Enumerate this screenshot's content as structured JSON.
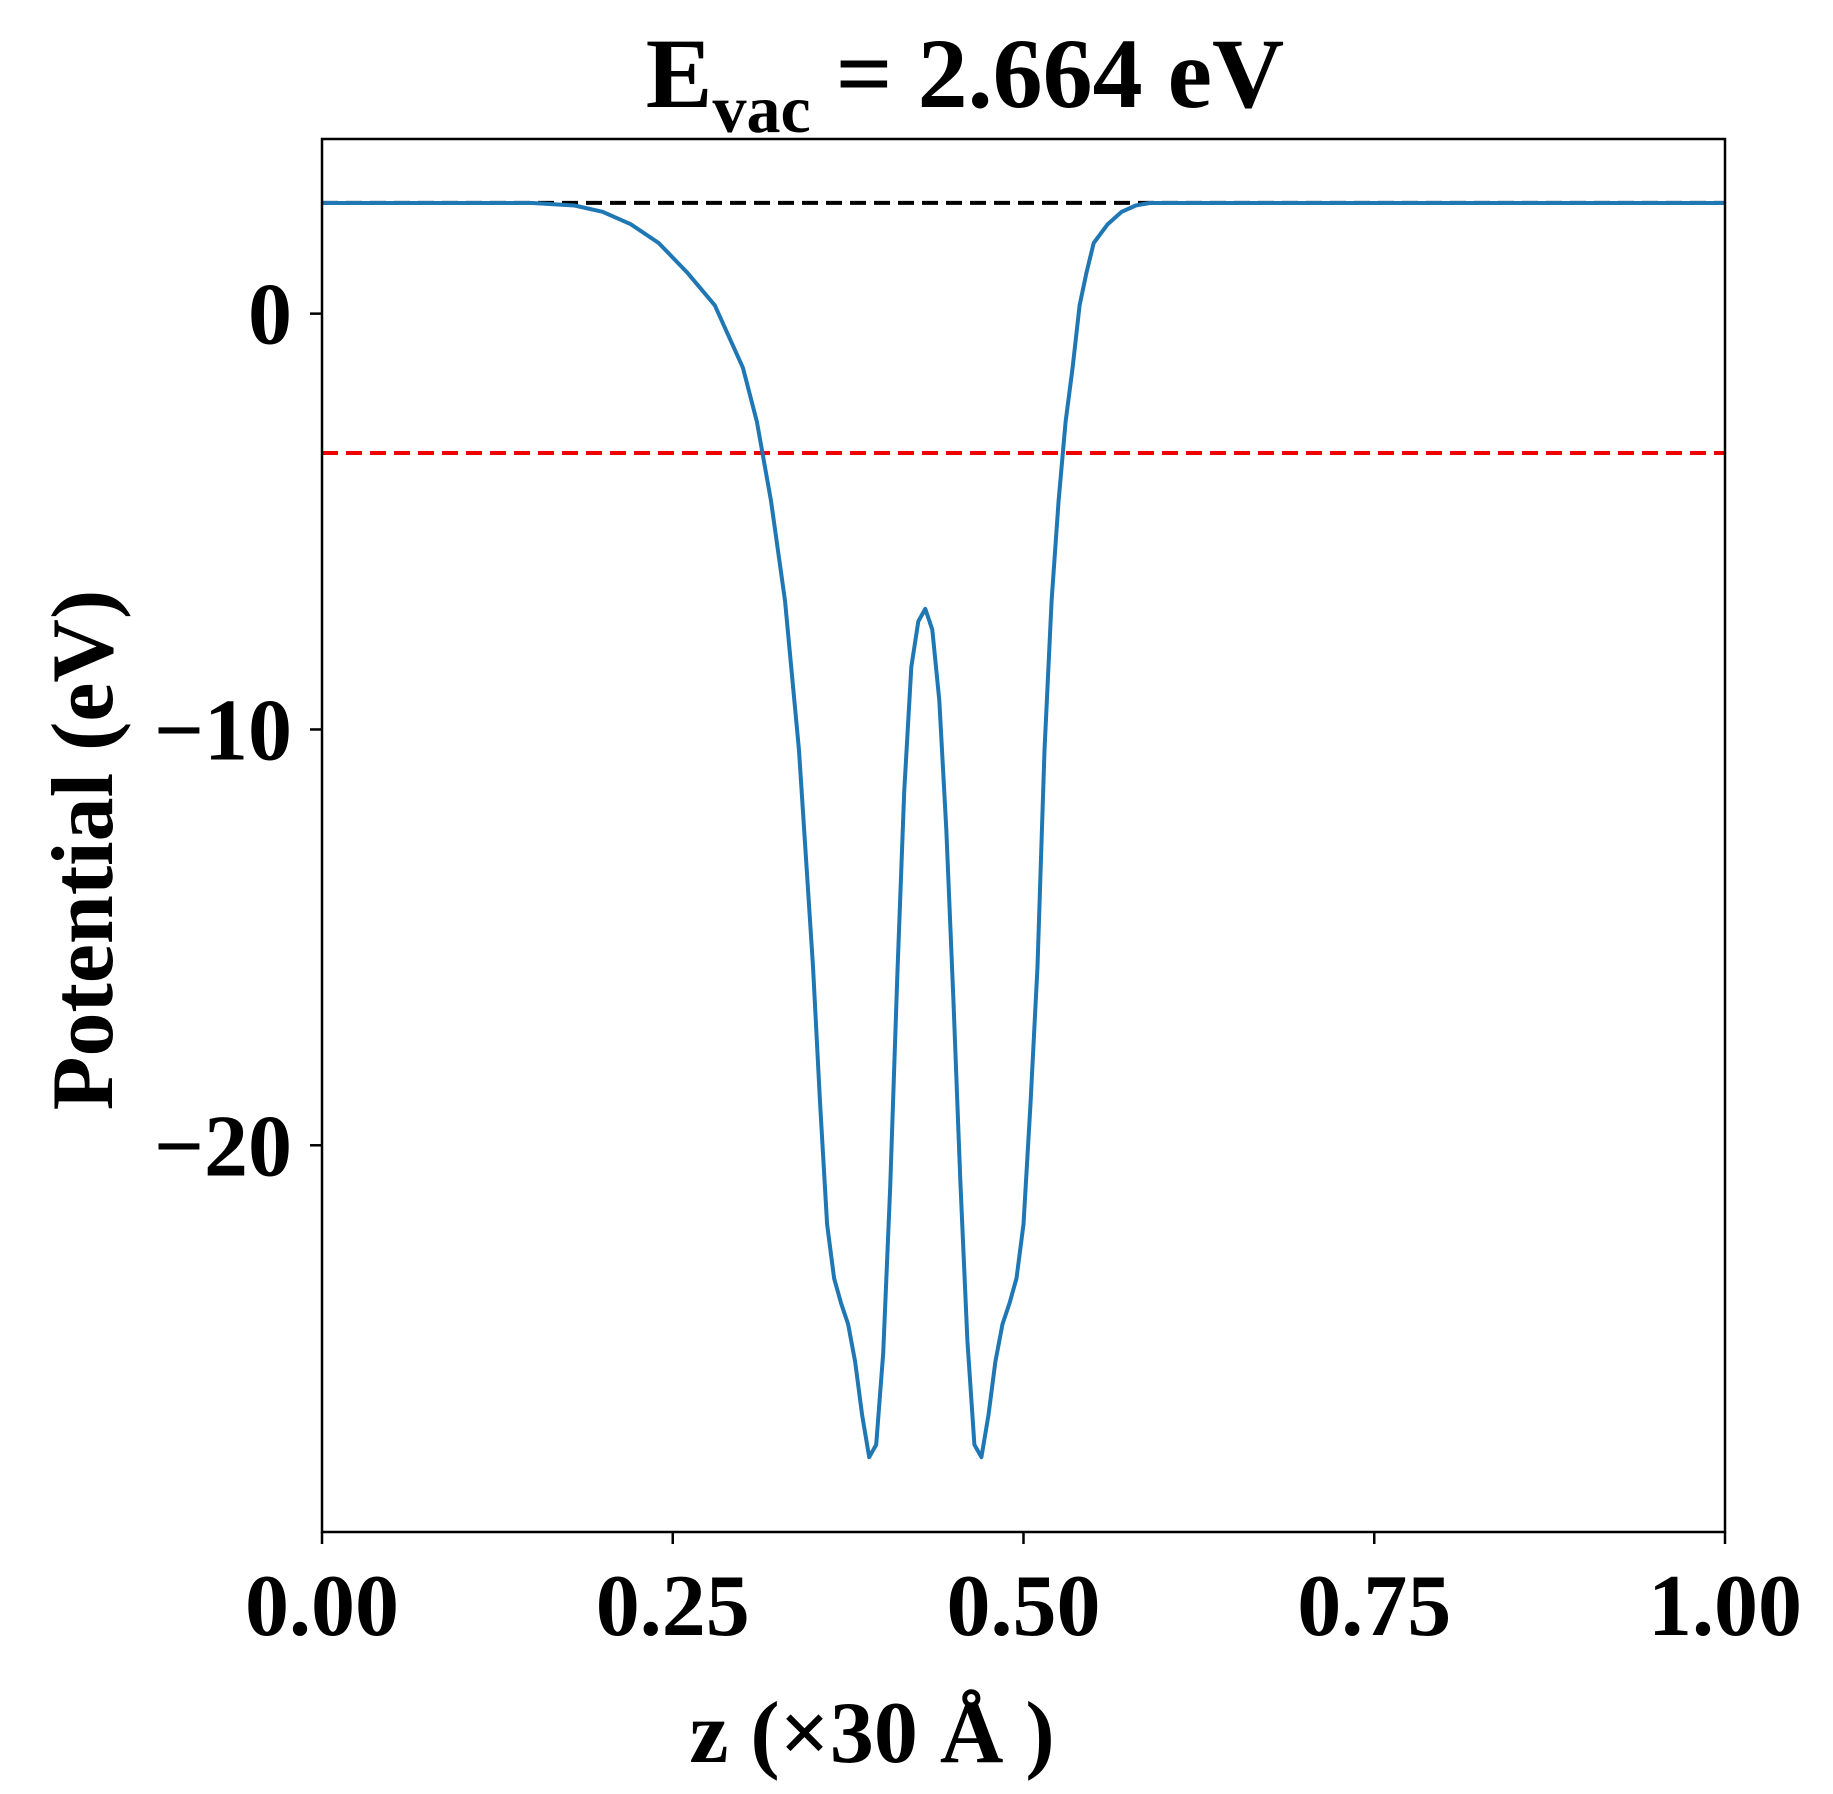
{
  "chart_data": {
    "type": "line",
    "title": {
      "main": "E",
      "subscript": "vac",
      "rest": " = 2.664 eV"
    },
    "xlabel": "z (×30 Å )",
    "ylabel": "Potential (eV)",
    "xlim": [
      0.0,
      1.0
    ],
    "ylim": [
      -29.3,
      4.2
    ],
    "x_ticks": [
      0.0,
      0.25,
      0.5,
      0.75,
      1.0
    ],
    "x_tick_labels": [
      "0.00",
      "0.25",
      "0.50",
      "0.75",
      "1.00"
    ],
    "y_ticks": [
      0,
      -10,
      -20
    ],
    "y_tick_labels": [
      "0",
      "−10",
      "−20"
    ],
    "grid": false,
    "legend": "none",
    "reference_lines": [
      {
        "y": 2.664,
        "color": "#000000",
        "style": "dashed"
      },
      {
        "y": -3.35,
        "color": "#ee0000",
        "style": "dashed"
      }
    ],
    "series": [
      {
        "color": "#1f77b4",
        "x": [
          0.0,
          0.05,
          0.1,
          0.15,
          0.18,
          0.2,
          0.22,
          0.24,
          0.26,
          0.28,
          0.3,
          0.31,
          0.32,
          0.33,
          0.34,
          0.35,
          0.355,
          0.36,
          0.365,
          0.37,
          0.375,
          0.38,
          0.385,
          0.39,
          0.395,
          0.4,
          0.405,
          0.41,
          0.415,
          0.42,
          0.425,
          0.43,
          0.435,
          0.44,
          0.445,
          0.45,
          0.455,
          0.46,
          0.465,
          0.47,
          0.475,
          0.48,
          0.485,
          0.49,
          0.495,
          0.5,
          0.505,
          0.51,
          0.515,
          0.52,
          0.525,
          0.53,
          0.535,
          0.54,
          0.545,
          0.55,
          0.56,
          0.57,
          0.58,
          0.59,
          0.6,
          0.62,
          0.64,
          0.66,
          0.68,
          0.7,
          0.72,
          0.75,
          0.8,
          0.9,
          1.0
        ],
        "y": [
          2.66,
          2.66,
          2.66,
          2.66,
          2.6,
          2.45,
          2.15,
          1.7,
          1.0,
          0.2,
          -1.3,
          -2.6,
          -4.5,
          -6.9,
          -10.5,
          -15.7,
          -19.0,
          -21.9,
          -23.2,
          -23.8,
          -24.3,
          -25.2,
          -26.5,
          -27.5,
          -27.2,
          -25.0,
          -21.0,
          -16.0,
          -11.5,
          -8.5,
          -7.4,
          -7.1,
          -7.6,
          -9.3,
          -12.4,
          -16.5,
          -20.9,
          -24.7,
          -27.2,
          -27.5,
          -26.5,
          -25.2,
          -24.3,
          -23.8,
          -23.2,
          -21.9,
          -19.0,
          -15.7,
          -10.5,
          -6.9,
          -4.5,
          -2.6,
          -1.3,
          0.2,
          1.0,
          1.7,
          2.15,
          2.45,
          2.6,
          2.66,
          2.66,
          2.66,
          2.66,
          2.66,
          2.66,
          2.66,
          2.66,
          2.66,
          2.66,
          2.66,
          2.66
        ]
      }
    ]
  }
}
